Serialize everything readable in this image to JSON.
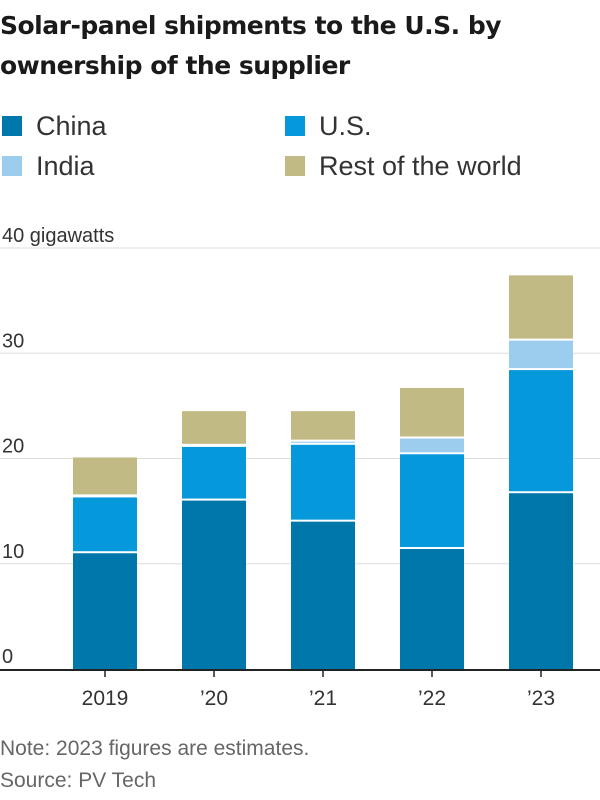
{
  "title": "Solar-panel shipments to the U.S. by ownership of the supplier",
  "note": "Note: 2023 figures are estimates.",
  "source": "Source: PV Tech",
  "colors": {
    "China": "#0077AA",
    "U.S.": "#0599DB",
    "India": "#9CCDEE",
    "Rest of the world": "#C2BA84"
  },
  "chart_data": {
    "type": "bar",
    "stacked": true,
    "title": "Solar-panel shipments to the U.S. by ownership of the supplier",
    "xlabel": "",
    "ylabel": "40 gigawatts",
    "categories": [
      "2019",
      "’20",
      "’21",
      "’22",
      "’23"
    ],
    "yticks": [
      0,
      10,
      20,
      30,
      40
    ],
    "ytick_labels": [
      "0",
      "10",
      "20",
      "30",
      "40 gigawatts"
    ],
    "ylim": [
      0,
      40
    ],
    "grid": true,
    "legend_position": "top",
    "series": [
      {
        "name": "China",
        "values": [
          11.0,
          16.0,
          14.0,
          11.4,
          16.7
        ]
      },
      {
        "name": "U.S.",
        "values": [
          5.3,
          5.1,
          7.3,
          9.0,
          11.7
        ]
      },
      {
        "name": "India",
        "values": [
          0.1,
          0.1,
          0.3,
          1.5,
          2.8
        ]
      },
      {
        "name": "Rest of the world",
        "values": [
          3.7,
          3.3,
          2.9,
          4.8,
          6.2
        ]
      }
    ]
  }
}
